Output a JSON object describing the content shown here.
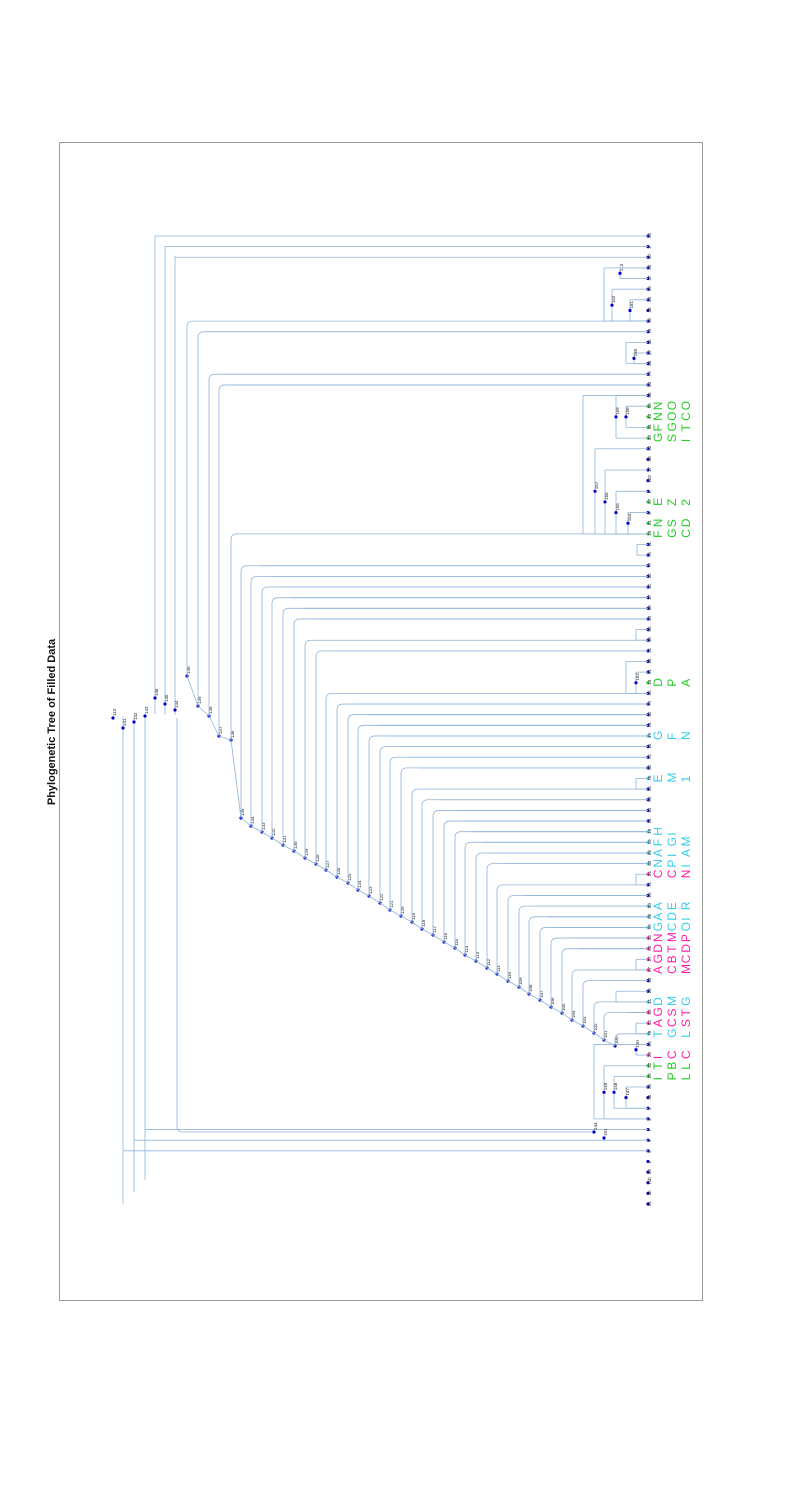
{
  "title": "Phylogenetic Tree of Filled Data",
  "colors": {
    "branch": "#8fb4d9",
    "node": "#0000cc",
    "label_green": "#22cc22",
    "label_magenta": "#ff1aa8",
    "label_cyan": "#33ccee",
    "frame": "#9a9a9a"
  },
  "leaves": [
    {
      "id": "54"
    },
    {
      "id": "2"
    },
    {
      "id": "30"
    },
    {
      "id": "39"
    },
    {
      "id": "37"
    },
    {
      "id": "85"
    },
    {
      "id": "40"
    },
    {
      "id": "38"
    },
    {
      "id": "16"
    },
    {
      "id": "70"
    },
    {
      "id": "45"
    },
    {
      "id": "47"
    },
    {
      "id": "66"
    },
    {
      "id": "79"
    },
    {
      "id": "84"
    },
    {
      "id": "88"
    },
    {
      "id": "56",
      "text": "NOO",
      "color": "green"
    },
    {
      "id": "43",
      "text": "NOC",
      "color": "green"
    },
    {
      "id": "44",
      "text": "FGT",
      "color": "green"
    },
    {
      "id": "33",
      "text": "GSI",
      "color": "green"
    },
    {
      "id": "42"
    },
    {
      "id": "58"
    },
    {
      "id": "17"
    },
    {
      "id": "102"
    },
    {
      "id": "6"
    },
    {
      "id": "57",
      "text": "EZ2",
      "color": "green"
    },
    {
      "id": "8"
    },
    {
      "id": "21",
      "text": "NSD",
      "color": "green"
    },
    {
      "id": "13",
      "text": "FGC",
      "color": "green"
    },
    {
      "id": "11"
    },
    {
      "id": "75"
    },
    {
      "id": "77"
    },
    {
      "id": "32"
    },
    {
      "id": "12"
    },
    {
      "id": "27"
    },
    {
      "id": "68"
    },
    {
      "id": "23"
    },
    {
      "id": "50"
    },
    {
      "id": "48"
    },
    {
      "id": "31"
    },
    {
      "id": "18"
    },
    {
      "id": "51"
    },
    {
      "id": "14",
      "text": "DPA",
      "color": "green"
    },
    {
      "id": "55"
    },
    {
      "id": "73"
    },
    {
      "id": "62"
    },
    {
      "id": "74"
    },
    {
      "id": "49",
      "text": "GFN",
      "color": "cyan"
    },
    {
      "id": "15"
    },
    {
      "id": "72"
    },
    {
      "id": "82"
    },
    {
      "id": "76",
      "text": "EM1",
      "color": "cyan"
    },
    {
      "id": "25"
    },
    {
      "id": "64"
    },
    {
      "id": "61"
    },
    {
      "id": "81"
    },
    {
      "id": "10",
      "text": "HI",
      "color": "cyan"
    },
    {
      "id": "19",
      "text": "FGM",
      "color": "cyan"
    },
    {
      "id": "65",
      "text": "AIA",
      "color": "cyan"
    },
    {
      "id": "83",
      "text": "NPI",
      "color": "cyan"
    },
    {
      "id": "24",
      "text": "CCN",
      "color": "magenta"
    },
    {
      "id": "71"
    },
    {
      "id": "20"
    },
    {
      "id": "80",
      "text": "AER",
      "color": "cyan"
    },
    {
      "id": "86",
      "text": "ADI",
      "color": "cyan"
    },
    {
      "id": "59",
      "text": "GCO",
      "color": "cyan"
    },
    {
      "id": "34",
      "text": "NMP",
      "color": "magenta"
    },
    {
      "id": "60",
      "text": "DTD",
      "color": "magenta"
    },
    {
      "id": "87",
      "text": "GBC",
      "color": "magenta"
    },
    {
      "id": "67",
      "text": "ACM",
      "color": "magenta"
    },
    {
      "id": "53"
    },
    {
      "id": "26"
    },
    {
      "id": "41",
      "text": "DMG",
      "color": "cyan"
    },
    {
      "id": "63",
      "text": "GST",
      "color": "magenta"
    },
    {
      "id": "52",
      "text": "ACS",
      "color": "magenta"
    },
    {
      "id": "78",
      "text": "TGL",
      "color": "cyan"
    },
    {
      "id": "69"
    },
    {
      "id": "28",
      "text": "ICC",
      "color": "magenta"
    },
    {
      "id": "22",
      "text": "TBL",
      "color": "green"
    },
    {
      "id": "29",
      "text": "IPL",
      "color": "green"
    },
    {
      "id": "35"
    },
    {
      "id": "36"
    },
    {
      "id": "3"
    },
    {
      "id": "4"
    },
    {
      "id": "7"
    },
    {
      "id": "9"
    },
    {
      "id": "5"
    },
    {
      "id": "1"
    },
    {
      "id": "89"
    },
    {
      "id": "71b"
    },
    {
      "id": "1b"
    },
    {
      "id": "91"
    }
  ],
  "internal_labels": [
    "113",
    "152",
    "161",
    "160",
    "159",
    "158",
    "157",
    "156",
    "155",
    "154",
    "153",
    "150",
    "149",
    "148",
    "147",
    "146",
    "145",
    "144",
    "143",
    "142",
    "141",
    "140",
    "139",
    "138",
    "137",
    "136",
    "135",
    "134",
    "133",
    "132",
    "131",
    "130",
    "129",
    "128",
    "127",
    "126",
    "125",
    "124",
    "123",
    "122",
    "121",
    "120",
    "119",
    "118",
    "117",
    "116",
    "115",
    "114",
    "113",
    "112",
    "111",
    "110",
    "109",
    "108",
    "107",
    "106",
    "105",
    "104",
    "103",
    "102",
    "101",
    "100",
    "99",
    "98",
    "97",
    "96",
    "95",
    "94",
    "93",
    "92",
    "91",
    "90",
    "89"
  ]
}
